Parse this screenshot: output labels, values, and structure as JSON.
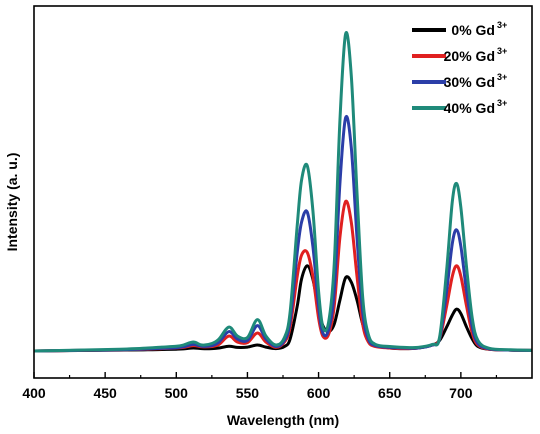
{
  "chart_data": {
    "type": "line",
    "xlabel": "Wavelength (nm)",
    "ylabel": "Intensity (a. u.)",
    "xlim": [
      400,
      750
    ],
    "ylim": [
      0,
      1.1
    ],
    "xticks": [
      400,
      450,
      500,
      550,
      600,
      650,
      700
    ],
    "show_yticks": false,
    "grid": false,
    "legend_position": "top-right",
    "series": [
      {
        "name": "0% Gd",
        "sup": "3+",
        "color": "#000000",
        "x": [
          400,
          460,
          480,
          490,
          500,
          505,
          512,
          518,
          525,
          530,
          537,
          543,
          550,
          557,
          563,
          570,
          576,
          580,
          585,
          588,
          592,
          596,
          600,
          603,
          607,
          611,
          615,
          619,
          623,
          627,
          631,
          635,
          640,
          650,
          660,
          670,
          680,
          685,
          690,
          694,
          697,
          700,
          704,
          708,
          712,
          720,
          735,
          750
        ],
        "y": [
          0.0,
          0.003,
          0.004,
          0.005,
          0.006,
          0.007,
          0.01,
          0.008,
          0.008,
          0.01,
          0.016,
          0.012,
          0.013,
          0.02,
          0.013,
          0.008,
          0.015,
          0.04,
          0.15,
          0.24,
          0.285,
          0.24,
          0.14,
          0.085,
          0.065,
          0.09,
          0.17,
          0.245,
          0.23,
          0.17,
          0.09,
          0.04,
          0.02,
          0.01,
          0.008,
          0.01,
          0.02,
          0.035,
          0.08,
          0.12,
          0.14,
          0.125,
          0.08,
          0.04,
          0.015,
          0.006,
          0.003,
          0.002
        ]
      },
      {
        "name": "20% Gd",
        "sup": "3+",
        "color": "#e02020",
        "x": [
          400,
          460,
          480,
          490,
          500,
          505,
          512,
          518,
          525,
          530,
          537,
          543,
          550,
          557,
          563,
          570,
          576,
          580,
          585,
          588,
          592,
          596,
          600,
          603,
          607,
          611,
          615,
          619,
          623,
          627,
          631,
          635,
          640,
          650,
          660,
          670,
          680,
          685,
          690,
          694,
          697,
          700,
          704,
          708,
          712,
          720,
          735,
          750
        ],
        "y": [
          0.0,
          0.004,
          0.006,
          0.008,
          0.01,
          0.012,
          0.018,
          0.014,
          0.015,
          0.022,
          0.05,
          0.03,
          0.028,
          0.06,
          0.03,
          0.012,
          0.03,
          0.08,
          0.25,
          0.32,
          0.33,
          0.25,
          0.11,
          0.05,
          0.055,
          0.15,
          0.38,
          0.5,
          0.43,
          0.25,
          0.09,
          0.03,
          0.015,
          0.01,
          0.008,
          0.01,
          0.02,
          0.04,
          0.15,
          0.25,
          0.285,
          0.25,
          0.15,
          0.06,
          0.02,
          0.006,
          0.003,
          0.002
        ]
      },
      {
        "name": "30% Gd",
        "sup": "3+",
        "color": "#2b3ea8",
        "x": [
          400,
          460,
          480,
          490,
          500,
          505,
          512,
          518,
          525,
          530,
          537,
          543,
          550,
          557,
          563,
          570,
          576,
          580,
          585,
          588,
          592,
          596,
          600,
          603,
          607,
          611,
          615,
          619,
          623,
          627,
          631,
          635,
          640,
          650,
          660,
          670,
          680,
          685,
          690,
          694,
          697,
          700,
          704,
          708,
          712,
          720,
          735,
          750
        ],
        "y": [
          0.0,
          0.004,
          0.007,
          0.009,
          0.011,
          0.014,
          0.022,
          0.016,
          0.018,
          0.03,
          0.065,
          0.04,
          0.035,
          0.085,
          0.04,
          0.015,
          0.035,
          0.1,
          0.33,
          0.43,
          0.465,
          0.35,
          0.15,
          0.06,
          0.07,
          0.2,
          0.56,
          0.78,
          0.68,
          0.38,
          0.13,
          0.04,
          0.018,
          0.012,
          0.01,
          0.01,
          0.02,
          0.04,
          0.2,
          0.36,
          0.405,
          0.35,
          0.2,
          0.08,
          0.025,
          0.007,
          0.003,
          0.002
        ]
      },
      {
        "name": "40% Gd",
        "sup": "3+",
        "color": "#1f8a7a",
        "x": [
          400,
          460,
          480,
          490,
          500,
          505,
          512,
          518,
          525,
          530,
          537,
          543,
          550,
          557,
          563,
          570,
          576,
          580,
          585,
          588,
          592,
          596,
          600,
          603,
          607,
          611,
          615,
          619,
          623,
          627,
          631,
          635,
          640,
          650,
          660,
          670,
          680,
          685,
          690,
          694,
          697,
          700,
          704,
          708,
          712,
          720,
          735,
          750
        ],
        "y": [
          0.0,
          0.006,
          0.01,
          0.013,
          0.016,
          0.02,
          0.03,
          0.02,
          0.025,
          0.04,
          0.08,
          0.05,
          0.045,
          0.105,
          0.05,
          0.02,
          0.045,
          0.13,
          0.42,
          0.57,
          0.62,
          0.47,
          0.2,
          0.08,
          0.095,
          0.29,
          0.77,
          1.06,
          0.92,
          0.53,
          0.18,
          0.055,
          0.022,
          0.015,
          0.012,
          0.012,
          0.022,
          0.045,
          0.27,
          0.5,
          0.56,
          0.48,
          0.28,
          0.11,
          0.035,
          0.009,
          0.004,
          0.002
        ]
      }
    ]
  }
}
